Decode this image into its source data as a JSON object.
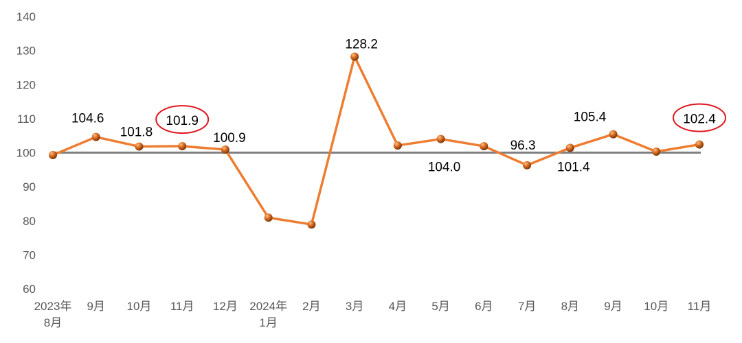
{
  "chart_data": {
    "type": "line",
    "title": "",
    "xlabel": "",
    "ylabel": "",
    "ylim": [
      60,
      140
    ],
    "yticks": [
      60,
      70,
      80,
      90,
      100,
      110,
      120,
      130,
      140
    ],
    "grid": false,
    "reference_line": 100,
    "categories": [
      [
        "2023年",
        "8月"
      ],
      [
        "9月"
      ],
      [
        "10月"
      ],
      [
        "11月"
      ],
      [
        "12月"
      ],
      [
        "2024年",
        "1月"
      ],
      [
        "2月"
      ],
      [
        "3月"
      ],
      [
        "4月"
      ],
      [
        "5月"
      ],
      [
        "6月"
      ],
      [
        "7月"
      ],
      [
        "8月"
      ],
      [
        "9月"
      ],
      [
        "10月"
      ],
      [
        "11月"
      ]
    ],
    "series": [
      {
        "name": "",
        "color": "#ED7D31",
        "values": [
          99.3,
          104.6,
          101.8,
          101.9,
          100.9,
          80.9,
          78.9,
          128.2,
          102.1,
          104.0,
          101.9,
          96.3,
          101.4,
          105.4,
          100.3,
          102.4
        ],
        "data_labels": [
          null,
          "104.6",
          "101.8",
          "101.9",
          "100.9",
          null,
          null,
          "128.2",
          null,
          "104.0",
          null,
          "96.3",
          "101.4",
          "105.4",
          null,
          "102.4"
        ],
        "highlighted": [
          3,
          15
        ]
      }
    ],
    "highlight_color": "#E0141E",
    "reference_color": "#808080"
  }
}
